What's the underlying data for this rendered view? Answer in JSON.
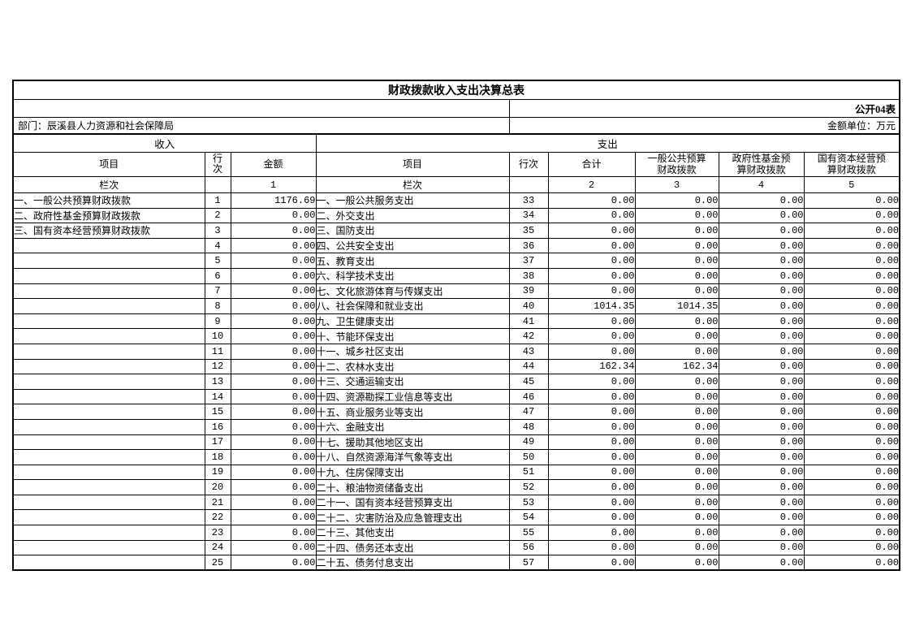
{
  "title": "财政拨款收入支出决算总表",
  "meta": {
    "table_code": "公开04表",
    "department": "部门：辰溪县人力资源和社会保障局",
    "unit": "金额单位：万元"
  },
  "income": {
    "section_label": "收入",
    "headers": {
      "item": "项目",
      "row_no": "行次",
      "amount": "金额"
    },
    "colindex": {
      "label": "栏次",
      "row_no": "",
      "amount": "1"
    },
    "rows": [
      {
        "item": "一、一般公共预算财政拨款",
        "no": "1",
        "amount": "1176.69"
      },
      {
        "item": "二、政府性基金预算财政拨款",
        "no": "2",
        "amount": "0.00"
      },
      {
        "item": "三、国有资本经营预算财政拨款",
        "no": "3",
        "amount": "0.00"
      },
      {
        "item": "",
        "no": "4",
        "amount": "0.00"
      },
      {
        "item": "",
        "no": "5",
        "amount": "0.00"
      },
      {
        "item": "",
        "no": "6",
        "amount": "0.00"
      },
      {
        "item": "",
        "no": "7",
        "amount": "0.00"
      },
      {
        "item": "",
        "no": "8",
        "amount": "0.00"
      },
      {
        "item": "",
        "no": "9",
        "amount": "0.00"
      },
      {
        "item": "",
        "no": "10",
        "amount": "0.00"
      },
      {
        "item": "",
        "no": "11",
        "amount": "0.00"
      },
      {
        "item": "",
        "no": "12",
        "amount": "0.00"
      },
      {
        "item": "",
        "no": "13",
        "amount": "0.00"
      },
      {
        "item": "",
        "no": "14",
        "amount": "0.00"
      },
      {
        "item": "",
        "no": "15",
        "amount": "0.00"
      },
      {
        "item": "",
        "no": "16",
        "amount": "0.00"
      },
      {
        "item": "",
        "no": "17",
        "amount": "0.00"
      },
      {
        "item": "",
        "no": "18",
        "amount": "0.00"
      },
      {
        "item": "",
        "no": "19",
        "amount": "0.00"
      },
      {
        "item": "",
        "no": "20",
        "amount": "0.00"
      },
      {
        "item": "",
        "no": "21",
        "amount": "0.00"
      },
      {
        "item": "",
        "no": "22",
        "amount": "0.00"
      },
      {
        "item": "",
        "no": "23",
        "amount": "0.00"
      },
      {
        "item": "",
        "no": "24",
        "amount": "0.00"
      },
      {
        "item": "",
        "no": "25",
        "amount": "0.00"
      }
    ]
  },
  "expenditure": {
    "section_label": "支出",
    "headers": {
      "item": "项目",
      "row_no": "行次",
      "total": "合计",
      "general": "一般公共预算财政拨款",
      "gov_fund": "政府性基金预算财政拨款",
      "state_capital": "国有资本经营预算财政拨款"
    },
    "colindex": {
      "label": "栏次",
      "row_no": "",
      "total": "2",
      "general": "3",
      "gov_fund": "4",
      "state_capital": "5"
    },
    "rows": [
      {
        "item": "一、一般公共服务支出",
        "no": "33",
        "total": "0.00",
        "general": "0.00",
        "gov_fund": "0.00",
        "state_capital": "0.00"
      },
      {
        "item": "二、外交支出",
        "no": "34",
        "total": "0.00",
        "general": "0.00",
        "gov_fund": "0.00",
        "state_capital": "0.00"
      },
      {
        "item": "三、国防支出",
        "no": "35",
        "total": "0.00",
        "general": "0.00",
        "gov_fund": "0.00",
        "state_capital": "0.00"
      },
      {
        "item": "四、公共安全支出",
        "no": "36",
        "total": "0.00",
        "general": "0.00",
        "gov_fund": "0.00",
        "state_capital": "0.00"
      },
      {
        "item": "五、教育支出",
        "no": "37",
        "total": "0.00",
        "general": "0.00",
        "gov_fund": "0.00",
        "state_capital": "0.00"
      },
      {
        "item": "六、科学技术支出",
        "no": "38",
        "total": "0.00",
        "general": "0.00",
        "gov_fund": "0.00",
        "state_capital": "0.00"
      },
      {
        "item": "七、文化旅游体育与传媒支出",
        "no": "39",
        "total": "0.00",
        "general": "0.00",
        "gov_fund": "0.00",
        "state_capital": "0.00"
      },
      {
        "item": "八、社会保障和就业支出",
        "no": "40",
        "total": "1014.35",
        "general": "1014.35",
        "gov_fund": "0.00",
        "state_capital": "0.00"
      },
      {
        "item": "九、卫生健康支出",
        "no": "41",
        "total": "0.00",
        "general": "0.00",
        "gov_fund": "0.00",
        "state_capital": "0.00"
      },
      {
        "item": "十、节能环保支出",
        "no": "42",
        "total": "0.00",
        "general": "0.00",
        "gov_fund": "0.00",
        "state_capital": "0.00"
      },
      {
        "item": "十一、城乡社区支出",
        "no": "43",
        "total": "0.00",
        "general": "0.00",
        "gov_fund": "0.00",
        "state_capital": "0.00"
      },
      {
        "item": "十二、农林水支出",
        "no": "44",
        "total": "162.34",
        "general": "162.34",
        "gov_fund": "0.00",
        "state_capital": "0.00"
      },
      {
        "item": "十三、交通运输支出",
        "no": "45",
        "total": "0.00",
        "general": "0.00",
        "gov_fund": "0.00",
        "state_capital": "0.00"
      },
      {
        "item": "十四、资源勘探工业信息等支出",
        "no": "46",
        "total": "0.00",
        "general": "0.00",
        "gov_fund": "0.00",
        "state_capital": "0.00"
      },
      {
        "item": "十五、商业服务业等支出",
        "no": "47",
        "total": "0.00",
        "general": "0.00",
        "gov_fund": "0.00",
        "state_capital": "0.00"
      },
      {
        "item": "十六、金融支出",
        "no": "48",
        "total": "0.00",
        "general": "0.00",
        "gov_fund": "0.00",
        "state_capital": "0.00"
      },
      {
        "item": "十七、援助其他地区支出",
        "no": "49",
        "total": "0.00",
        "general": "0.00",
        "gov_fund": "0.00",
        "state_capital": "0.00"
      },
      {
        "item": "十八、自然资源海洋气象等支出",
        "no": "50",
        "total": "0.00",
        "general": "0.00",
        "gov_fund": "0.00",
        "state_capital": "0.00"
      },
      {
        "item": "十九、住房保障支出",
        "no": "51",
        "total": "0.00",
        "general": "0.00",
        "gov_fund": "0.00",
        "state_capital": "0.00"
      },
      {
        "item": "二十、粮油物资储备支出",
        "no": "52",
        "total": "0.00",
        "general": "0.00",
        "gov_fund": "0.00",
        "state_capital": "0.00"
      },
      {
        "item": "二十一、国有资本经营预算支出",
        "no": "53",
        "total": "0.00",
        "general": "0.00",
        "gov_fund": "0.00",
        "state_capital": "0.00"
      },
      {
        "item": "二十二、灾害防治及应急管理支出",
        "no": "54",
        "total": "0.00",
        "general": "0.00",
        "gov_fund": "0.00",
        "state_capital": "0.00"
      },
      {
        "item": "二十三、其他支出",
        "no": "55",
        "total": "0.00",
        "general": "0.00",
        "gov_fund": "0.00",
        "state_capital": "0.00"
      },
      {
        "item": "二十四、债务还本支出",
        "no": "56",
        "total": "0.00",
        "general": "0.00",
        "gov_fund": "0.00",
        "state_capital": "0.00"
      },
      {
        "item": "二十五、债务付息支出",
        "no": "57",
        "total": "0.00",
        "general": "0.00",
        "gov_fund": "0.00",
        "state_capital": "0.00"
      }
    ]
  }
}
